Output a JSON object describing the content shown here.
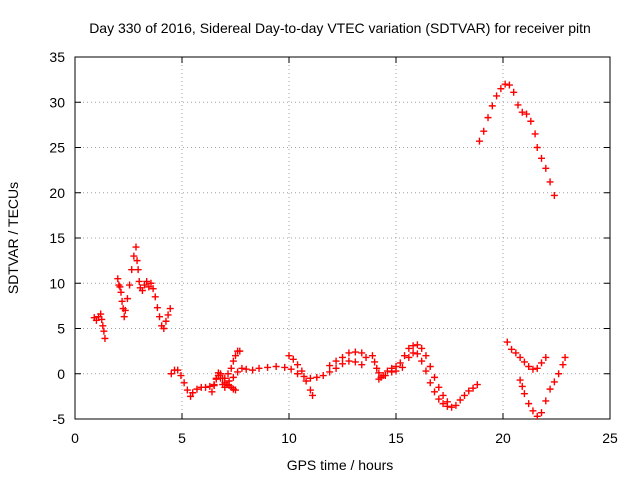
{
  "chart_data": {
    "type": "scatter",
    "title": "Day 330 of 2016, Sidereal Day-to-day VTEC variation (SDTVAR) for receiver pitn",
    "xlabel": "GPS time / hours",
    "ylabel": "SDTVAR / TECUs",
    "xlim": [
      0,
      25
    ],
    "ylim": [
      -5,
      35
    ],
    "xticks": [
      0,
      5,
      10,
      15,
      20,
      25
    ],
    "yticks": [
      -5,
      0,
      5,
      10,
      15,
      20,
      25,
      30,
      35
    ],
    "grid": true,
    "legend": "none",
    "marker": "plus",
    "color": "#ff0000",
    "series": [
      {
        "points": [
          [
            0.9,
            6.2
          ],
          [
            1.0,
            5.9
          ],
          [
            1.1,
            6.3
          ],
          [
            1.2,
            6.6
          ],
          [
            1.25,
            6.0
          ],
          [
            1.3,
            5.3
          ],
          [
            1.35,
            4.7
          ],
          [
            1.4,
            3.9
          ]
        ]
      },
      {
        "points": [
          [
            2.0,
            10.5
          ],
          [
            2.05,
            9.8
          ],
          [
            2.1,
            9.6
          ],
          [
            2.15,
            9.0
          ],
          [
            2.2,
            8.0
          ],
          [
            2.25,
            7.2
          ],
          [
            2.3,
            6.3
          ],
          [
            2.35,
            7.0
          ],
          [
            2.45,
            8.3
          ],
          [
            2.55,
            9.8
          ],
          [
            2.65,
            11.5
          ],
          [
            2.75,
            13.0
          ],
          [
            2.85,
            14.0
          ],
          [
            2.9,
            12.5
          ],
          [
            2.95,
            11.5
          ],
          [
            3.0,
            10.2
          ],
          [
            3.05,
            9.5
          ],
          [
            3.15,
            9.2
          ],
          [
            3.25,
            9.8
          ],
          [
            3.35,
            10.2
          ],
          [
            3.45,
            9.6
          ],
          [
            3.55,
            10.0
          ],
          [
            3.65,
            9.4
          ],
          [
            3.75,
            8.5
          ],
          [
            3.85,
            7.3
          ],
          [
            3.95,
            6.3
          ],
          [
            4.05,
            5.3
          ],
          [
            4.15,
            5.0
          ],
          [
            4.25,
            5.8
          ],
          [
            4.35,
            6.5
          ],
          [
            4.45,
            7.2
          ]
        ]
      },
      {
        "points": [
          [
            4.5,
            0.0
          ],
          [
            4.65,
            0.4
          ],
          [
            4.8,
            0.4
          ],
          [
            4.95,
            -0.2
          ],
          [
            5.1,
            -1.0
          ],
          [
            5.25,
            -1.8
          ],
          [
            5.4,
            -2.5
          ],
          [
            5.5,
            -2.1
          ],
          [
            5.7,
            -1.7
          ],
          [
            5.9,
            -1.5
          ],
          [
            6.1,
            -1.5
          ],
          [
            6.3,
            -1.4
          ],
          [
            6.5,
            -1.2
          ],
          [
            6.6,
            -0.5
          ],
          [
            6.7,
            0.1
          ],
          [
            6.8,
            0.0
          ],
          [
            6.9,
            -0.5
          ],
          [
            7.0,
            -1.0
          ],
          [
            7.1,
            -1.2
          ],
          [
            7.2,
            -1.3
          ],
          [
            7.3,
            -1.5
          ],
          [
            7.4,
            -1.7
          ],
          [
            7.5,
            -1.8
          ]
        ]
      },
      {
        "points": [
          [
            6.4,
            -2.0
          ],
          [
            6.5,
            -1.3
          ],
          [
            6.6,
            -0.6
          ],
          [
            6.7,
            -0.2
          ],
          [
            6.8,
            -0.5
          ],
          [
            6.9,
            -1.2
          ],
          [
            7.0,
            -1.5
          ]
        ]
      },
      {
        "points": [
          [
            7.0,
            -0.5
          ],
          [
            7.15,
            0.0
          ],
          [
            7.3,
            0.6
          ],
          [
            7.4,
            1.4
          ],
          [
            7.5,
            2.0
          ],
          [
            7.6,
            2.5
          ],
          [
            7.7,
            2.5
          ]
        ]
      },
      {
        "points": [
          [
            7.2,
            -0.8
          ],
          [
            7.4,
            -0.4
          ],
          [
            7.6,
            0.2
          ],
          [
            7.8,
            0.6
          ],
          [
            8.0,
            0.5
          ],
          [
            8.3,
            0.4
          ],
          [
            8.6,
            0.6
          ],
          [
            9.0,
            0.7
          ],
          [
            9.4,
            0.8
          ],
          [
            9.8,
            0.7
          ],
          [
            10.1,
            0.5
          ],
          [
            10.4,
            0.0
          ],
          [
            10.7,
            -0.3
          ],
          [
            11.0,
            -0.5
          ],
          [
            11.3,
            -0.4
          ],
          [
            11.6,
            -0.2
          ],
          [
            11.9,
            0.2
          ],
          [
            12.2,
            0.6
          ],
          [
            12.5,
            1.1
          ],
          [
            12.8,
            1.4
          ],
          [
            13.1,
            1.3
          ],
          [
            13.4,
            1.0
          ]
        ]
      },
      {
        "points": [
          [
            10.0,
            2.0
          ],
          [
            10.2,
            1.6
          ],
          [
            10.4,
            1.0
          ],
          [
            10.6,
            0.3
          ],
          [
            10.8,
            -0.8
          ],
          [
            11.0,
            -1.8
          ],
          [
            11.1,
            -2.4
          ]
        ]
      },
      {
        "points": [
          [
            11.9,
            0.9
          ],
          [
            12.2,
            1.4
          ],
          [
            12.5,
            1.8
          ],
          [
            12.8,
            2.3
          ],
          [
            13.1,
            2.4
          ],
          [
            13.4,
            2.3
          ],
          [
            13.6,
            1.8
          ]
        ]
      },
      {
        "points": [
          [
            13.9,
            2.0
          ],
          [
            14.0,
            1.3
          ],
          [
            14.1,
            0.6
          ],
          [
            14.2,
            0.1
          ],
          [
            14.3,
            -0.4
          ],
          [
            14.4,
            -0.2
          ],
          [
            14.6,
            0.3
          ],
          [
            14.8,
            0.6
          ],
          [
            15.0,
            0.8
          ],
          [
            15.2,
            1.2
          ],
          [
            15.4,
            2.0
          ],
          [
            15.6,
            2.8
          ],
          [
            15.8,
            3.1
          ],
          [
            16.0,
            3.2
          ],
          [
            16.2,
            2.8
          ],
          [
            16.4,
            2.0
          ],
          [
            16.6,
            0.8
          ],
          [
            16.8,
            -0.4
          ],
          [
            17.0,
            -1.5
          ],
          [
            17.2,
            -2.4
          ],
          [
            17.4,
            -3.1
          ],
          [
            17.6,
            -3.7
          ],
          [
            17.8,
            -3.5
          ],
          [
            18.0,
            -2.9
          ],
          [
            18.2,
            -2.4
          ],
          [
            18.4,
            -1.9
          ],
          [
            18.6,
            -1.6
          ],
          [
            18.8,
            -1.2
          ]
        ]
      },
      {
        "points": [
          [
            14.2,
            -0.6
          ],
          [
            14.5,
            -0.2
          ],
          [
            14.8,
            0.2
          ],
          [
            15.0,
            0.3
          ],
          [
            15.3,
            0.7
          ],
          [
            15.6,
            1.8
          ],
          [
            15.8,
            2.3
          ],
          [
            16.0,
            2.2
          ],
          [
            16.2,
            1.4
          ],
          [
            16.4,
            0.3
          ],
          [
            16.6,
            -1.0
          ],
          [
            16.8,
            -2.0
          ],
          [
            17.0,
            -2.8
          ],
          [
            17.2,
            -3.3
          ],
          [
            17.4,
            -3.6
          ]
        ]
      },
      {
        "points": [
          [
            18.9,
            25.7
          ],
          [
            19.1,
            26.8
          ],
          [
            19.3,
            28.3
          ],
          [
            19.5,
            29.6
          ],
          [
            19.7,
            30.7
          ],
          [
            19.9,
            31.5
          ],
          [
            20.1,
            32.0
          ],
          [
            20.3,
            31.9
          ],
          [
            20.5,
            31.1
          ],
          [
            20.7,
            29.7
          ],
          [
            20.9,
            28.9
          ],
          [
            21.1,
            28.7
          ],
          [
            21.3,
            27.9
          ],
          [
            21.5,
            26.5
          ],
          [
            21.6,
            25.0
          ],
          [
            21.8,
            23.8
          ],
          [
            22.0,
            22.7
          ],
          [
            22.2,
            21.2
          ],
          [
            22.4,
            19.7
          ]
        ]
      },
      {
        "points": [
          [
            20.2,
            3.5
          ],
          [
            20.4,
            2.7
          ],
          [
            20.6,
            2.3
          ],
          [
            20.8,
            1.8
          ],
          [
            21.0,
            1.3
          ],
          [
            21.2,
            0.8
          ],
          [
            21.4,
            0.5
          ],
          [
            21.6,
            0.6
          ],
          [
            21.8,
            1.2
          ],
          [
            22.0,
            1.8
          ]
        ]
      },
      {
        "points": [
          [
            20.8,
            -0.7
          ],
          [
            20.9,
            -1.4
          ],
          [
            21.0,
            -2.2
          ],
          [
            21.2,
            -3.3
          ],
          [
            21.4,
            -4.1
          ],
          [
            21.6,
            -4.7
          ],
          [
            21.8,
            -4.3
          ],
          [
            22.0,
            -3.0
          ],
          [
            22.2,
            -1.7
          ],
          [
            22.4,
            -0.9
          ],
          [
            22.6,
            0.0
          ],
          [
            22.8,
            1.0
          ],
          [
            22.9,
            1.8
          ]
        ]
      }
    ]
  }
}
